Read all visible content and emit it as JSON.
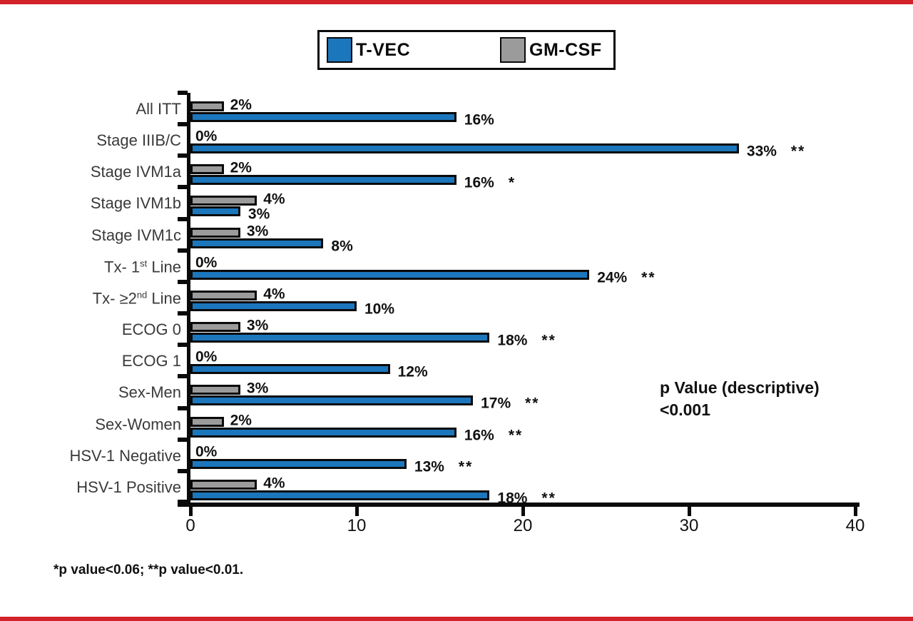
{
  "colors": {
    "tvec_blue": "#1c76bc",
    "gmcsf_gray": "#9b9b9b",
    "bar_border": "#0a0a0a",
    "axis_black": "#0a0a0a",
    "red_band": "#d2232b"
  },
  "legend": {
    "items": [
      {
        "label": "T-VEC",
        "color": "#1c76bc"
      },
      {
        "label": "GM-CSF",
        "color": "#9b9b9b"
      }
    ]
  },
  "chart_data": {
    "type": "bar",
    "orientation": "horizontal",
    "title": "",
    "xlabel": "",
    "ylabel": "",
    "xlim": [
      0,
      40
    ],
    "x_ticks": [
      "0",
      "10",
      "20",
      "30",
      "40"
    ],
    "x_tick_values": [
      0,
      10,
      20,
      30,
      40
    ],
    "grid": false,
    "legend_position": "top-center",
    "categories": [
      "All ITT",
      "Stage IIIB/C",
      "Stage IVM1a",
      "Stage IVM1b",
      "Stage IVM1c",
      "Tx- 1st Line",
      "Tx- ≥2nd Line",
      "ECOG 0",
      "ECOG 1",
      "Sex-Men",
      "Sex-Women",
      "HSV-1 Negative",
      "HSV-1 Positive"
    ],
    "series": [
      {
        "name": "GM-CSF",
        "color": "#9b9b9b",
        "values": [
          2,
          0,
          2,
          4,
          3,
          0,
          4,
          3,
          0,
          3,
          2,
          0,
          4
        ]
      },
      {
        "name": "T-VEC",
        "color": "#1c76bc",
        "values": [
          16,
          33,
          16,
          3,
          8,
          24,
          10,
          18,
          12,
          17,
          16,
          13,
          18
        ]
      }
    ],
    "rows": [
      {
        "label_pre": "All ITT",
        "label_sup": "",
        "label_post": "",
        "gmcsf": 2,
        "gmcsf_label": "2%",
        "tvec": 16,
        "tvec_label": "16%",
        "sig": ""
      },
      {
        "label_pre": "Stage IIIB/C",
        "label_sup": "",
        "label_post": "",
        "gmcsf": 0,
        "gmcsf_label": "0%",
        "tvec": 33,
        "tvec_label": "33%",
        "sig": "**"
      },
      {
        "label_pre": "Stage IVM1a",
        "label_sup": "",
        "label_post": "",
        "gmcsf": 2,
        "gmcsf_label": "2%",
        "tvec": 16,
        "tvec_label": "16%",
        "sig": "*"
      },
      {
        "label_pre": "Stage IVM1b",
        "label_sup": "",
        "label_post": "",
        "gmcsf": 4,
        "gmcsf_label": "4%",
        "tvec": 3,
        "tvec_label": "3%",
        "sig": ""
      },
      {
        "label_pre": "Stage IVM1c",
        "label_sup": "",
        "label_post": "",
        "gmcsf": 3,
        "gmcsf_label": "3%",
        "tvec": 8,
        "tvec_label": "8%",
        "sig": ""
      },
      {
        "label_pre": "Tx- 1",
        "label_sup": "st",
        "label_post": " Line",
        "gmcsf": 0,
        "gmcsf_label": "0%",
        "tvec": 24,
        "tvec_label": "24%",
        "sig": "**"
      },
      {
        "label_pre": "Tx- ≥2",
        "label_sup": "nd",
        "label_post": " Line",
        "gmcsf": 4,
        "gmcsf_label": "4%",
        "tvec": 10,
        "tvec_label": "10%",
        "sig": ""
      },
      {
        "label_pre": "ECOG 0",
        "label_sup": "",
        "label_post": "",
        "gmcsf": 3,
        "gmcsf_label": "3%",
        "tvec": 18,
        "tvec_label": "18%",
        "sig": "**"
      },
      {
        "label_pre": "ECOG 1",
        "label_sup": "",
        "label_post": "",
        "gmcsf": 0,
        "gmcsf_label": "0%",
        "tvec": 12,
        "tvec_label": "12%",
        "sig": ""
      },
      {
        "label_pre": "Sex-Men",
        "label_sup": "",
        "label_post": "",
        "gmcsf": 3,
        "gmcsf_label": "3%",
        "tvec": 17,
        "tvec_label": "17%",
        "sig": "**"
      },
      {
        "label_pre": "Sex-Women",
        "label_sup": "",
        "label_post": "",
        "gmcsf": 2,
        "gmcsf_label": "2%",
        "tvec": 16,
        "tvec_label": "16%",
        "sig": "**"
      },
      {
        "label_pre": "HSV-1 Negative",
        "label_sup": "",
        "label_post": "",
        "gmcsf": 0,
        "gmcsf_label": "0%",
        "tvec": 13,
        "tvec_label": "13%",
        "sig": "**"
      },
      {
        "label_pre": "HSV-1 Positive",
        "label_sup": "",
        "label_post": "",
        "gmcsf": 4,
        "gmcsf_label": "4%",
        "tvec": 18,
        "tvec_label": "18%",
        "sig": "**"
      }
    ]
  },
  "annotation": {
    "line1": "p Value (descriptive)",
    "line2": "<0.001"
  },
  "footnote": "*p value<0.06; **p value<0.01."
}
